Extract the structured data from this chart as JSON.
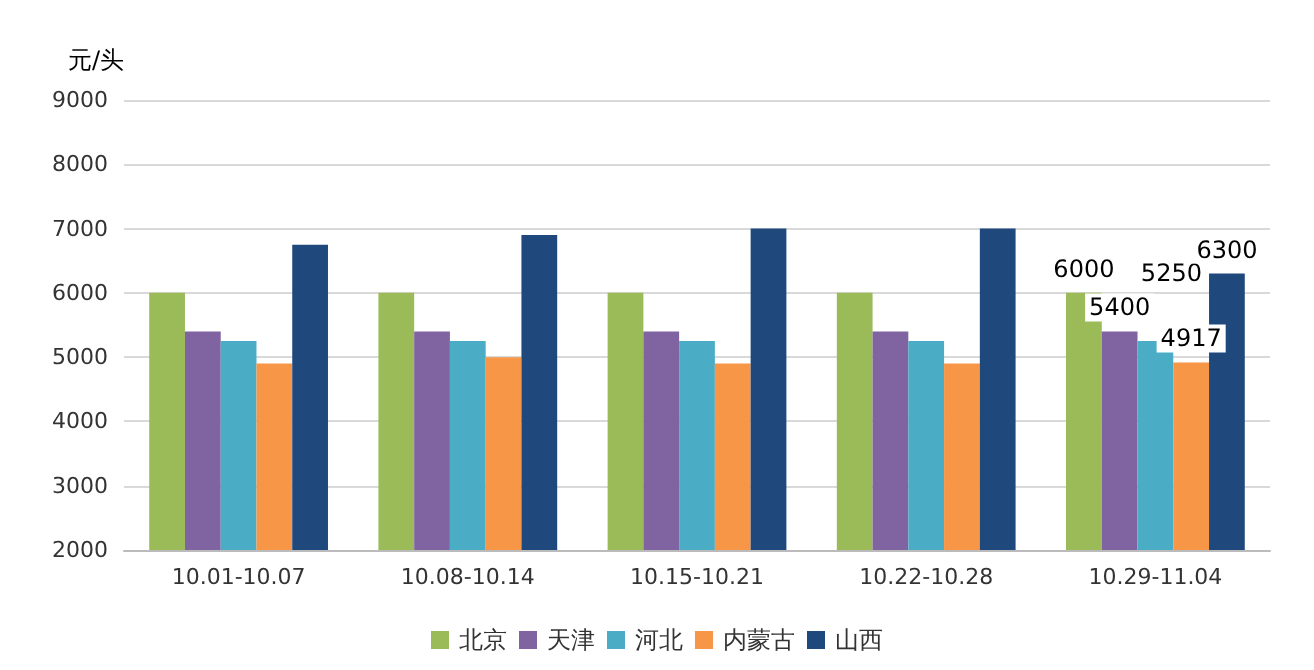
{
  "chart_data": {
    "type": "bar",
    "ylabel": "元/头",
    "categories": [
      "10.01-10.07",
      "10.08-10.14",
      "10.15-10.21",
      "10.22-10.28",
      "10.29-11.04"
    ],
    "series": [
      {
        "name": "北京",
        "color": "#9bbb59",
        "values": [
          6000,
          6000,
          6000,
          6000,
          6000
        ],
        "value_labels": [
          null,
          null,
          null,
          null,
          "6000"
        ]
      },
      {
        "name": "天津",
        "color": "#8064a2",
        "values": [
          5400,
          5400,
          5400,
          5400,
          5400
        ],
        "value_labels": [
          null,
          null,
          null,
          null,
          "5400"
        ]
      },
      {
        "name": "河北",
        "color": "#4bacc6",
        "values": [
          5250,
          5250,
          5250,
          5250,
          5250
        ],
        "value_labels": [
          null,
          null,
          null,
          null,
          "5250"
        ]
      },
      {
        "name": "内蒙古",
        "color": "#f79646",
        "values": [
          4900,
          5000,
          4900,
          4900,
          4917
        ],
        "value_labels": [
          null,
          null,
          null,
          null,
          "4917"
        ]
      },
      {
        "name": "山西",
        "color": "#1f497d",
        "values": [
          6750,
          6900,
          7000,
          7000,
          6300
        ],
        "value_labels": [
          null,
          null,
          null,
          null,
          "6300"
        ]
      }
    ],
    "ylim": [
      2000,
      9000
    ],
    "yticks": [
      2000,
      3000,
      4000,
      5000,
      6000,
      7000,
      8000,
      9000
    ],
    "grid": "y",
    "legend": "bottom"
  }
}
